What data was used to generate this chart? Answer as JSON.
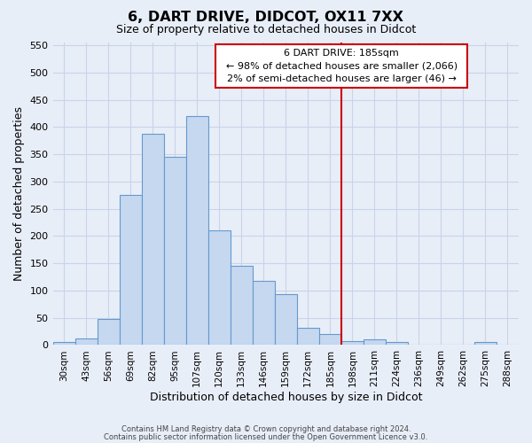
{
  "title": "6, DART DRIVE, DIDCOT, OX11 7XX",
  "subtitle": "Size of property relative to detached houses in Didcot",
  "xlabel": "Distribution of detached houses by size in Didcot",
  "ylabel": "Number of detached properties",
  "bar_labels": [
    "30sqm",
    "43sqm",
    "56sqm",
    "69sqm",
    "82sqm",
    "95sqm",
    "107sqm",
    "120sqm",
    "133sqm",
    "146sqm",
    "159sqm",
    "172sqm",
    "185sqm",
    "198sqm",
    "211sqm",
    "224sqm",
    "236sqm",
    "249sqm",
    "262sqm",
    "275sqm",
    "288sqm"
  ],
  "bar_values": [
    5,
    12,
    48,
    275,
    388,
    345,
    420,
    210,
    145,
    118,
    93,
    31,
    20,
    8,
    11,
    5,
    0,
    0,
    0,
    5,
    0
  ],
  "bar_color": "#c5d8f0",
  "bar_edge_color": "#6699cc",
  "vline_x": 12.5,
  "vline_color": "#cc0000",
  "annotation_title": "6 DART DRIVE: 185sqm",
  "annotation_line1": "← 98% of detached houses are smaller (2,066)",
  "annotation_line2": "2% of semi-detached houses are larger (46) →",
  "annotation_box_color": "#ffffff",
  "annotation_box_edge": "#cc0000",
  "ylim": [
    0,
    555
  ],
  "yticks": [
    0,
    50,
    100,
    150,
    200,
    250,
    300,
    350,
    400,
    450,
    500,
    550
  ],
  "footnote1": "Contains HM Land Registry data © Crown copyright and database right 2024.",
  "footnote2": "Contains public sector information licensed under the Open Government Licence v3.0.",
  "grid_color": "#c8d4e8",
  "bg_color": "#e8eef8"
}
